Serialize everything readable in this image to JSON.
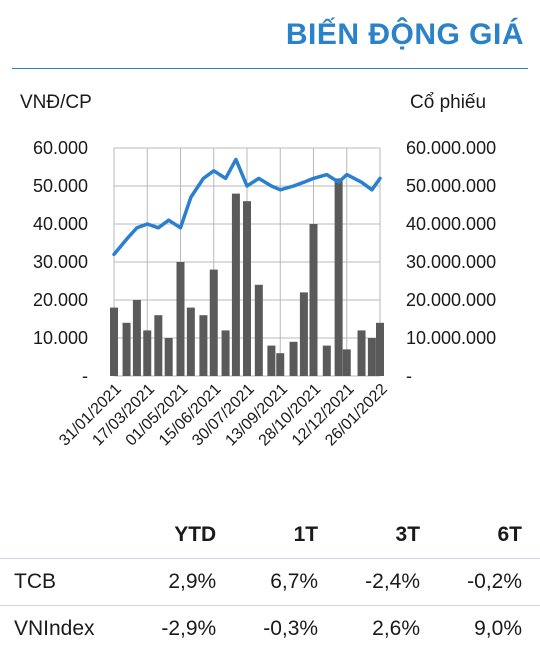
{
  "header": {
    "title": "BIẾN ĐỘNG GIÁ",
    "left_unit": "VNĐ/CP",
    "right_unit": "Cổ phiếu"
  },
  "chart_data": {
    "type": "line",
    "title": "BIẾN ĐỘNG GIÁ",
    "ylabel": "VNĐ/CP",
    "y2label": "Cổ phiếu",
    "ylim": [
      0,
      60000
    ],
    "y2lim": [
      0,
      60000000
    ],
    "left_tick_labels": [
      "-",
      "10.000",
      "20.000",
      "30.000",
      "40.000",
      "50.000",
      "60.000"
    ],
    "right_tick_labels": [
      "-",
      "10.000.000",
      "20.000.000",
      "30.000.000",
      "40.000.000",
      "50.000.000",
      "60.000.000"
    ],
    "x_tick_labels": [
      "31/01/2021",
      "17/03/2021",
      "01/05/2021",
      "15/06/2021",
      "30/07/2021",
      "13/09/2021",
      "28/10/2021",
      "12/12/2021",
      "26/01/2022"
    ],
    "grid": true,
    "colors": {
      "price": "#2a7fcf",
      "volume": "#5a5a5a",
      "grid": "#b8b8b8"
    },
    "series": [
      {
        "axis": "left",
        "kind": "line",
        "x": [
          "31/01/2021",
          "17/02/2021",
          "03/03/2021",
          "17/03/2021",
          "01/04/2021",
          "15/04/2021",
          "01/05/2021",
          "15/05/2021",
          "01/06/2021",
          "15/06/2021",
          "01/07/2021",
          "15/07/2021",
          "30/07/2021",
          "15/08/2021",
          "01/09/2021",
          "13/09/2021",
          "01/10/2021",
          "15/10/2021",
          "28/10/2021",
          "15/11/2021",
          "01/12/2021",
          "12/12/2021",
          "01/01/2022",
          "15/01/2022",
          "26/01/2022"
        ],
        "values": [
          32000,
          36000,
          39000,
          40000,
          39000,
          41000,
          39000,
          47000,
          52000,
          54000,
          52000,
          57000,
          50000,
          52000,
          50000,
          49000,
          50000,
          51000,
          52000,
          53000,
          51000,
          53000,
          51000,
          49000,
          52000
        ]
      },
      {
        "axis": "right",
        "kind": "bar",
        "x": [
          "31/01/2021",
          "17/02/2021",
          "03/03/2021",
          "17/03/2021",
          "01/04/2021",
          "15/04/2021",
          "01/05/2021",
          "15/05/2021",
          "01/06/2021",
          "15/06/2021",
          "01/07/2021",
          "15/07/2021",
          "30/07/2021",
          "15/08/2021",
          "01/09/2021",
          "13/09/2021",
          "01/10/2021",
          "15/10/2021",
          "28/10/2021",
          "15/11/2021",
          "01/12/2021",
          "12/12/2021",
          "01/01/2022",
          "15/01/2022",
          "26/01/2022"
        ],
        "values": [
          18000000,
          14000000,
          20000000,
          12000000,
          16000000,
          10000000,
          30000000,
          18000000,
          16000000,
          28000000,
          12000000,
          48000000,
          46000000,
          24000000,
          8000000,
          6000000,
          9000000,
          22000000,
          40000000,
          8000000,
          52000000,
          7000000,
          12000000,
          10000000,
          14000000
        ]
      }
    ]
  },
  "performance": {
    "headers": [
      "YTD",
      "1T",
      "3T",
      "6T"
    ],
    "rows": [
      {
        "name": "TCB",
        "values": [
          "2,9%",
          "6,7%",
          "-2,4%",
          "-0,2%"
        ]
      },
      {
        "name": "VNIndex",
        "values": [
          "-2,9%",
          "-0,3%",
          "2,6%",
          "9,0%"
        ]
      }
    ]
  }
}
